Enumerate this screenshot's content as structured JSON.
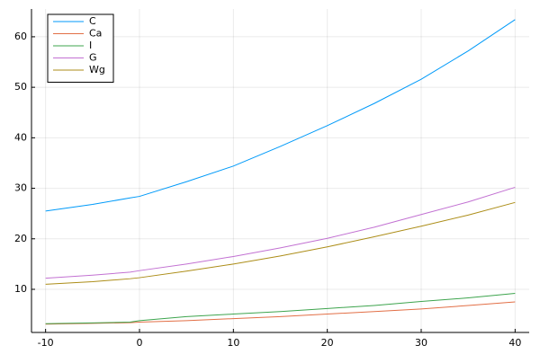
{
  "chart_data": {
    "type": "line",
    "x": [
      -10,
      -5,
      -1,
      0,
      5,
      10,
      15,
      20,
      25,
      30,
      35,
      40
    ],
    "series": [
      {
        "name": "C",
        "color": "#009af9",
        "values": [
          25.5,
          26.8,
          28.1,
          28.4,
          31.3,
          34.4,
          38.3,
          42.4,
          46.8,
          51.6,
          57.2,
          63.4
        ]
      },
      {
        "name": "Ca",
        "color": "#e26f46",
        "values": [
          3.1,
          3.25,
          3.4,
          3.5,
          3.8,
          4.2,
          4.6,
          5.1,
          5.6,
          6.1,
          6.8,
          7.5
        ]
      },
      {
        "name": "I",
        "color": "#3da44d",
        "values": [
          3.2,
          3.35,
          3.5,
          3.8,
          4.6,
          5.1,
          5.6,
          6.2,
          6.8,
          7.6,
          8.3,
          9.2
        ]
      },
      {
        "name": "G",
        "color": "#c271d2",
        "values": [
          12.2,
          12.8,
          13.4,
          13.7,
          15.0,
          16.5,
          18.2,
          20.1,
          22.3,
          24.8,
          27.3,
          30.2
        ]
      },
      {
        "name": "Wg",
        "color": "#ac8d18",
        "values": [
          11.0,
          11.5,
          12.1,
          12.3,
          13.6,
          15.0,
          16.6,
          18.4,
          20.4,
          22.5,
          24.7,
          27.2
        ]
      }
    ],
    "xlim": [
      -11.5,
      41.5
    ],
    "xticks": [
      -10,
      0,
      10,
      20,
      30,
      40
    ],
    "ylim": [
      1.46,
      65.5
    ],
    "yticks": [
      10,
      20,
      30,
      40,
      50,
      60
    ],
    "grid": true,
    "legend": "top-left"
  }
}
